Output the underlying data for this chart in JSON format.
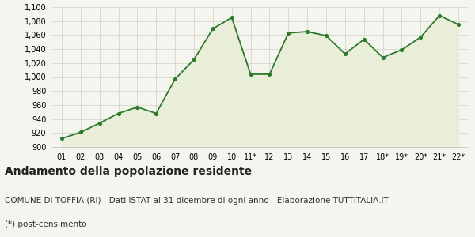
{
  "x_labels": [
    "01",
    "02",
    "03",
    "04",
    "05",
    "06",
    "07",
    "08",
    "09",
    "10",
    "11*",
    "12",
    "13",
    "14",
    "15",
    "16",
    "17",
    "18*",
    "19*",
    "20*",
    "21*",
    "22*"
  ],
  "values": [
    912,
    921,
    934,
    948,
    957,
    948,
    997,
    1025,
    1069,
    1085,
    1004,
    1004,
    1063,
    1065,
    1059,
    1033,
    1054,
    1028,
    1039,
    1057,
    1088,
    1075
  ],
  "line_color": "#2d7a2d",
  "fill_color": "#e8eed8",
  "marker_color": "#2d7a2d",
  "bg_color": "#f5f5ef",
  "grid_color": "#d0d0c8",
  "ylim_min": 900,
  "ylim_max": 1100,
  "yticks": [
    900,
    920,
    940,
    960,
    980,
    1000,
    1020,
    1040,
    1060,
    1080,
    1100
  ],
  "title": "Andamento della popolazione residente",
  "subtitle": "COMUNE DI TOFFIA (RI) - Dati ISTAT al 31 dicembre di ogni anno - Elaborazione TUTTITALIA.IT",
  "footnote": "(*) post-censimento",
  "title_fontsize": 10,
  "subtitle_fontsize": 7.5,
  "footnote_fontsize": 7.5,
  "tick_fontsize": 7
}
